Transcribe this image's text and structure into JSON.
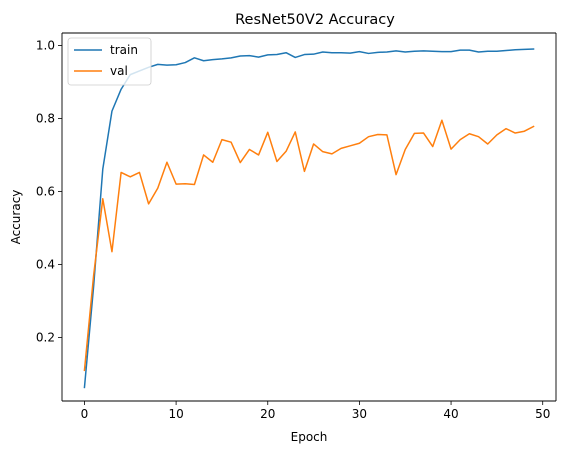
{
  "chart_data": {
    "type": "line",
    "title": "ResNet50V2 Accuracy",
    "xlabel": "Epoch",
    "ylabel": "Accuracy",
    "xlim": [
      -2.45,
      51.45
    ],
    "ylim": [
      0.026,
      1.034
    ],
    "xticks": [
      0,
      10,
      20,
      30,
      40,
      50
    ],
    "yticks": [
      0.2,
      0.4,
      0.6,
      0.8,
      1.0
    ],
    "xtick_labels": [
      "0",
      "10",
      "20",
      "30",
      "40",
      "50"
    ],
    "ytick_labels": [
      "0.2",
      "0.4",
      "0.6",
      "0.8",
      "1.0"
    ],
    "legend": {
      "placement": "upper left"
    },
    "grid": false,
    "x": [
      0,
      1,
      2,
      3,
      4,
      5,
      6,
      7,
      8,
      9,
      10,
      11,
      12,
      13,
      14,
      15,
      16,
      17,
      18,
      19,
      20,
      21,
      22,
      23,
      24,
      25,
      26,
      27,
      28,
      29,
      30,
      31,
      32,
      33,
      34,
      35,
      36,
      37,
      38,
      39,
      40,
      41,
      42,
      43,
      44,
      45,
      46,
      47,
      48,
      49
    ],
    "series": [
      {
        "name": "train",
        "color": "#1f77b4",
        "values": [
          0.063,
          0.34,
          0.661,
          0.82,
          0.88,
          0.92,
          0.93,
          0.94,
          0.948,
          0.946,
          0.947,
          0.953,
          0.966,
          0.958,
          0.961,
          0.963,
          0.966,
          0.971,
          0.972,
          0.968,
          0.974,
          0.975,
          0.98,
          0.967,
          0.975,
          0.976,
          0.982,
          0.98,
          0.98,
          0.979,
          0.983,
          0.978,
          0.981,
          0.982,
          0.985,
          0.982,
          0.984,
          0.985,
          0.984,
          0.983,
          0.983,
          0.987,
          0.987,
          0.982,
          0.984,
          0.984,
          0.986,
          0.988,
          0.989,
          0.99
        ]
      },
      {
        "name": "val",
        "color": "#ff7f0e",
        "values": [
          0.11,
          0.37,
          0.58,
          0.435,
          0.652,
          0.64,
          0.652,
          0.566,
          0.609,
          0.68,
          0.62,
          0.621,
          0.619,
          0.7,
          0.68,
          0.742,
          0.735,
          0.679,
          0.715,
          0.7,
          0.762,
          0.682,
          0.71,
          0.763,
          0.655,
          0.73,
          0.709,
          0.703,
          0.718,
          0.725,
          0.732,
          0.75,
          0.756,
          0.755,
          0.646,
          0.715,
          0.759,
          0.76,
          0.723,
          0.795,
          0.716,
          0.742,
          0.758,
          0.75,
          0.73,
          0.755,
          0.772,
          0.76,
          0.765,
          0.778
        ]
      }
    ]
  }
}
